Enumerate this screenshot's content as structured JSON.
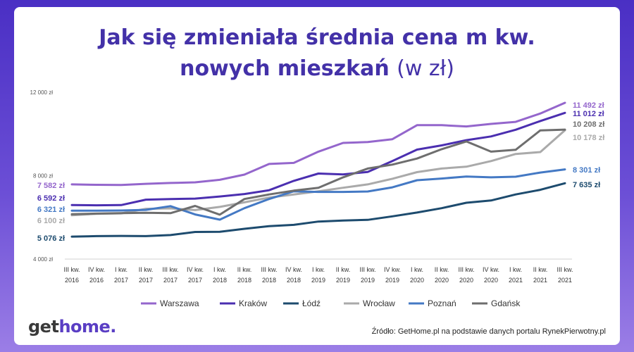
{
  "title": {
    "line1": "Jak się zmieniała średnia cena m kw.",
    "line2_main": "nowych mieszkań",
    "line2_unit": "(w zł)"
  },
  "logo": {
    "part1": "get",
    "part2": "home."
  },
  "source": "Źródło: GetHome.pl na podstawie danych portalu RynekPierwotny.pl",
  "chart_data": {
    "type": "line",
    "ylim": [
      4000,
      12000
    ],
    "yticks": [
      {
        "value": 4000,
        "label": "4 000 zł"
      },
      {
        "value": 8000,
        "label": "8 000 zł"
      },
      {
        "value": 12000,
        "label": "12 000 zł"
      }
    ],
    "categories": [
      [
        "III kw.",
        "2016"
      ],
      [
        "IV kw.",
        "2016"
      ],
      [
        "I kw.",
        "2017"
      ],
      [
        "II kw.",
        "2017"
      ],
      [
        "III kw.",
        "2017"
      ],
      [
        "IV kw.",
        "2017"
      ],
      [
        "I kw.",
        "2018"
      ],
      [
        "II kw.",
        "2018"
      ],
      [
        "III kw.",
        "2018"
      ],
      [
        "IV kw.",
        "2018"
      ],
      [
        "I kw.",
        "2019"
      ],
      [
        "II kw.",
        "2019"
      ],
      [
        "III kw.",
        "2019"
      ],
      [
        "IV kw.",
        "2019"
      ],
      [
        "I kw.",
        "2020"
      ],
      [
        "II kw.",
        "2020"
      ],
      [
        "III kw.",
        "2020"
      ],
      [
        "IV kw.",
        "2020"
      ],
      [
        "I kw.",
        "2021"
      ],
      [
        "II kw.",
        "2021"
      ],
      [
        "III kw.",
        "2021"
      ]
    ],
    "series": [
      {
        "name": "Warszawa",
        "color": "#9466cc",
        "start_label": "7 582 zł",
        "end_label": "11 492 zł",
        "values": [
          7582,
          7560,
          7550,
          7610,
          7650,
          7680,
          7800,
          8050,
          8560,
          8610,
          9150,
          9570,
          9610,
          9750,
          10420,
          10420,
          10360,
          10480,
          10580,
          10980,
          11492
        ]
      },
      {
        "name": "Kraków",
        "color": "#4b2fb0",
        "start_label": "6 592 zł",
        "end_label": "11 012 zł",
        "values": [
          6592,
          6580,
          6590,
          6850,
          6880,
          6900,
          7000,
          7120,
          7300,
          7750,
          8100,
          8060,
          8180,
          8700,
          9250,
          9450,
          9700,
          9880,
          10200,
          10620,
          11012
        ]
      },
      {
        "name": "Łódź",
        "color": "#1d4b6e",
        "start_label": "5 076 zł",
        "end_label": "7 635 zł",
        "values": [
          5076,
          5100,
          5110,
          5100,
          5150,
          5300,
          5310,
          5450,
          5580,
          5640,
          5800,
          5850,
          5880,
          6050,
          6230,
          6440,
          6700,
          6810,
          7100,
          7320,
          7635
        ]
      },
      {
        "name": "Wrocław",
        "color": "#aaaaaa",
        "start_label": "6 100 zł",
        "end_label": "10 178 zł",
        "values": [
          6100,
          6170,
          6190,
          6410,
          6430,
          6350,
          6500,
          6720,
          6950,
          7100,
          7250,
          7420,
          7580,
          7850,
          8170,
          8340,
          8430,
          8700,
          9040,
          9130,
          10178
        ]
      },
      {
        "name": "Poznań",
        "color": "#4479c4",
        "start_label": "6 321 zł",
        "end_label": "8 301 zł",
        "values": [
          6321,
          6320,
          6330,
          6360,
          6540,
          6140,
          5890,
          6440,
          6880,
          7250,
          7220,
          7220,
          7240,
          7440,
          7780,
          7860,
          7960,
          7920,
          7950,
          8150,
          8301
        ]
      },
      {
        "name": "Gdańsk",
        "color": "#6e6e6e",
        "start_label": "",
        "end_label": "10 208 zł",
        "values": [
          6150,
          6180,
          6200,
          6220,
          6200,
          6550,
          6130,
          6880,
          7100,
          7280,
          7420,
          7920,
          8340,
          8530,
          8820,
          9270,
          9640,
          9150,
          9240,
          10170,
          10208
        ]
      }
    ],
    "legend_position": "bottom",
    "grid": false
  }
}
